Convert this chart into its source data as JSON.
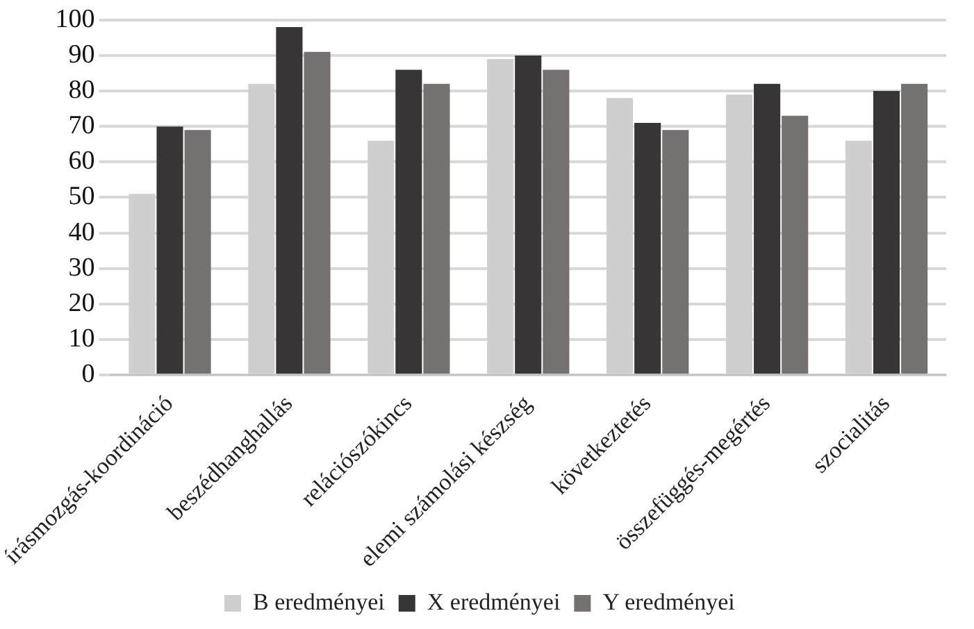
{
  "chart_data": {
    "type": "bar",
    "categories": [
      "írásmozgás-koordináció",
      "beszédhanghallás",
      "relációszókincs",
      "elemi számolási készség",
      "következtetés",
      "összefüggés-megértés",
      "szocialitás"
    ],
    "series": [
      {
        "name": "B eredményei",
        "color": "#d0cfcf",
        "values": [
          51,
          82,
          66,
          89,
          78,
          79,
          66
        ]
      },
      {
        "name": "X eredményei",
        "color": "#383536",
        "values": [
          70,
          98,
          86,
          90,
          71,
          82,
          80
        ]
      },
      {
        "name": "Y eredményei",
        "color": "#767171",
        "values": [
          69,
          91,
          82,
          86,
          69,
          73,
          82
        ]
      }
    ],
    "ylim": [
      0,
      100
    ],
    "yticks": [
      0,
      10,
      20,
      30,
      40,
      50,
      60,
      70,
      80,
      90,
      100
    ],
    "grid": "y",
    "legend": "bottom"
  }
}
